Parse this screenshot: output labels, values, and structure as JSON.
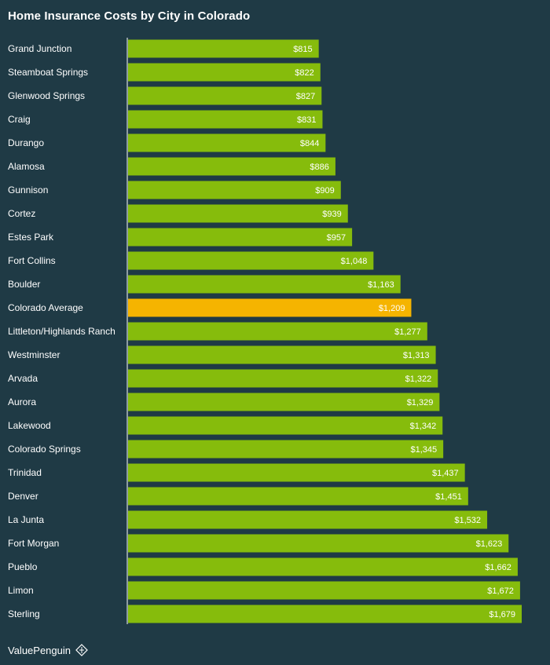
{
  "chart_data": {
    "type": "bar",
    "orientation": "horizontal",
    "title": "Home Insurance Costs by City in Colorado",
    "categories": [
      "Grand Junction",
      "Steamboat Springs",
      "Glenwood Springs",
      "Craig",
      "Durango",
      "Alamosa",
      "Gunnison",
      "Cortez",
      "Estes Park",
      "Fort Collins",
      "Boulder",
      "Colorado Average",
      "Littleton/Highlands Ranch",
      "Westminster",
      "Arvada",
      "Aurora",
      "Lakewood",
      "Colorado Springs",
      "Trinidad",
      "Denver",
      "La Junta",
      "Fort Morgan",
      "Pueblo",
      "Limon",
      "Sterling"
    ],
    "values": [
      815,
      822,
      827,
      831,
      844,
      886,
      909,
      939,
      957,
      1048,
      1163,
      1209,
      1277,
      1313,
      1322,
      1329,
      1342,
      1345,
      1437,
      1451,
      1532,
      1623,
      1662,
      1672,
      1679
    ],
    "value_labels": [
      "$815",
      "$822",
      "$827",
      "$831",
      "$844",
      "$886",
      "$909",
      "$939",
      "$957",
      "$1,048",
      "$1,163",
      "$1,209",
      "$1,277",
      "$1,313",
      "$1,322",
      "$1,329",
      "$1,342",
      "$1,345",
      "$1,437",
      "$1,451",
      "$1,532",
      "$1,623",
      "$1,662",
      "$1,672",
      "$1,679"
    ],
    "highlight_category": "Colorado Average",
    "xlim": [
      0,
      1679
    ],
    "bar_color": "#86bc0c",
    "highlight_color": "#f5b400",
    "grid": false
  },
  "footer": {
    "brand": "ValuePenguin",
    "logo_icon": "penguin-diamond-icon"
  },
  "colors": {
    "background": "#1f3a45",
    "text": "#ffffff",
    "axis": "#ffffff"
  }
}
